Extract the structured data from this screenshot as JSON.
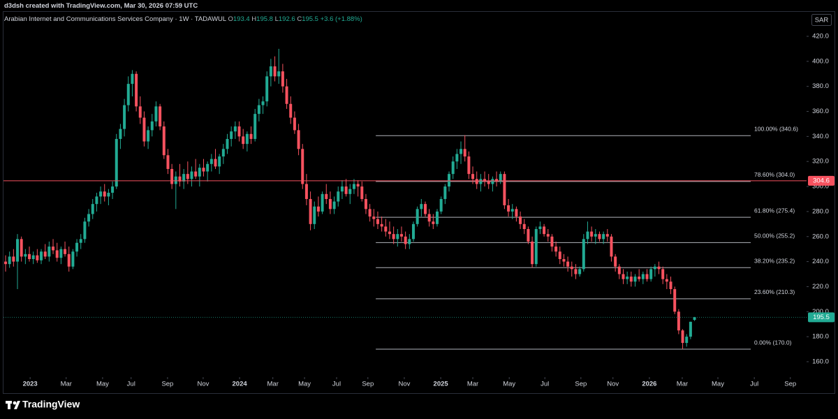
{
  "header": {
    "credit": "d3dsh created with TradingView.com, Mar 30, 2026 07:59 UTC",
    "symbol": "Arabian Internet and Communications Services Company · 1W · TADAWUL",
    "ohlc": [
      {
        "key": "O",
        "value": "193.4"
      },
      {
        "key": "H",
        "value": "195.8"
      },
      {
        "key": "L",
        "value": "192.6"
      },
      {
        "key": "C",
        "value": "195.5"
      }
    ],
    "change": "+3.6 (+1.88%)",
    "currency": "SAR",
    "brand": "TradingView"
  },
  "chart_data": {
    "type": "candlestick",
    "up_color": "#22ab94",
    "down_color": "#f7525f",
    "xlim": [
      -0.53,
      202.3
    ],
    "ylim": [
      147.7,
      426.7
    ],
    "xticks": [
      {
        "value": 6.2,
        "label": "2023"
      },
      {
        "value": 15.3,
        "label": "Mar"
      },
      {
        "value": 24.5,
        "label": "May"
      },
      {
        "value": 31.7,
        "label": "Jul"
      },
      {
        "value": 40.9,
        "label": "Sep"
      },
      {
        "value": 49.9,
        "label": "Nov"
      },
      {
        "value": 59.1,
        "label": "2024"
      },
      {
        "value": 67.5,
        "label": "Mar"
      },
      {
        "value": 75.5,
        "label": "May"
      },
      {
        "value": 83.6,
        "label": "Jul"
      },
      {
        "value": 91.5,
        "label": "Sep"
      },
      {
        "value": 100.7,
        "label": "Nov"
      },
      {
        "value": 109.9,
        "label": "2025"
      },
      {
        "value": 118.0,
        "label": "Mar"
      },
      {
        "value": 127.2,
        "label": "May"
      },
      {
        "value": 136.2,
        "label": "Jul"
      },
      {
        "value": 145.3,
        "label": "Sep"
      },
      {
        "value": 153.4,
        "label": "Nov"
      },
      {
        "value": 162.6,
        "label": "2026"
      },
      {
        "value": 170.9,
        "label": "Mar"
      },
      {
        "value": 179.9,
        "label": "May"
      },
      {
        "value": 189.1,
        "label": "Jul"
      },
      {
        "value": 198.2,
        "label": "Sep"
      }
    ],
    "yticks": [
      {
        "value": 160,
        "label": "160.0"
      },
      {
        "value": 180,
        "label": "180.0"
      },
      {
        "value": 200,
        "label": "200.0"
      },
      {
        "value": 220,
        "label": "220.0"
      },
      {
        "value": 240,
        "label": "240.0"
      },
      {
        "value": 260,
        "label": "260.0"
      },
      {
        "value": 280,
        "label": "280.0"
      },
      {
        "value": 300,
        "label": "300.0"
      },
      {
        "value": 320,
        "label": "320.0"
      },
      {
        "value": 340,
        "label": "340.0"
      },
      {
        "value": 360,
        "label": "360.0"
      },
      {
        "value": 380,
        "label": "380.0"
      },
      {
        "value": 400,
        "label": "400.0"
      },
      {
        "value": 420,
        "label": "420.0"
      }
    ],
    "fib": {
      "x": [
        93.5,
        188.2
      ],
      "color": "#d1d4dc",
      "levels": [
        {
          "value": 340.6,
          "label": "100.00% (340.6)"
        },
        {
          "value": 304.0,
          "label": "78.60% (304.0)"
        },
        {
          "value": 275.4,
          "label": "61.80% (275.4)"
        },
        {
          "value": 255.2,
          "label": "50.00% (255.2)"
        },
        {
          "value": 235.2,
          "label": "38.20% (235.2)"
        },
        {
          "value": 210.3,
          "label": "23.60% (210.3)"
        },
        {
          "value": 170.0,
          "label": "0.00% (170.0)"
        }
      ]
    },
    "price_lines": [
      {
        "value": 304.6,
        "color": "#f7525f",
        "style": "solid"
      },
      {
        "value": 195.5,
        "color": "#22ab94",
        "style": "dotted"
      }
    ],
    "candles": [
      [
        240,
        245,
        232,
        238
      ],
      [
        238,
        248,
        235,
        244
      ],
      [
        244,
        250,
        236,
        240
      ],
      [
        240,
        262,
        218,
        258
      ],
      [
        258,
        260,
        240,
        244
      ],
      [
        244,
        250,
        238,
        246
      ],
      [
        246,
        252,
        240,
        242
      ],
      [
        242,
        248,
        238,
        245
      ],
      [
        245,
        250,
        239,
        241
      ],
      [
        241,
        250,
        238,
        248
      ],
      [
        248,
        254,
        242,
        244
      ],
      [
        244,
        256,
        240,
        252
      ],
      [
        252,
        258,
        246,
        249
      ],
      [
        249,
        255,
        240,
        243
      ],
      [
        243,
        252,
        238,
        250
      ],
      [
        250,
        256,
        244,
        246
      ],
      [
        246,
        252,
        232,
        236
      ],
      [
        236,
        250,
        234,
        248
      ],
      [
        248,
        258,
        244,
        255
      ],
      [
        255,
        262,
        250,
        258
      ],
      [
        258,
        275,
        255,
        272
      ],
      [
        272,
        282,
        268,
        278
      ],
      [
        278,
        290,
        274,
        286
      ],
      [
        286,
        295,
        280,
        292
      ],
      [
        292,
        300,
        286,
        296
      ],
      [
        296,
        302,
        288,
        292
      ],
      [
        292,
        298,
        285,
        295
      ],
      [
        295,
        304,
        290,
        300
      ],
      [
        300,
        342,
        298,
        338
      ],
      [
        338,
        350,
        330,
        346
      ],
      [
        346,
        370,
        340,
        365
      ],
      [
        365,
        388,
        360,
        382
      ],
      [
        382,
        393,
        372,
        390
      ],
      [
        390,
        392,
        360,
        364
      ],
      [
        364,
        372,
        350,
        355
      ],
      [
        355,
        360,
        332,
        336
      ],
      [
        336,
        348,
        330,
        345
      ],
      [
        345,
        358,
        340,
        352
      ],
      [
        352,
        368,
        348,
        364
      ],
      [
        364,
        366,
        345,
        348
      ],
      [
        348,
        352,
        322,
        325
      ],
      [
        325,
        330,
        310,
        314
      ],
      [
        314,
        318,
        298,
        302
      ],
      [
        302,
        312,
        282,
        308
      ],
      [
        308,
        318,
        300,
        304
      ],
      [
        304,
        314,
        298,
        310
      ],
      [
        310,
        320,
        302,
        306
      ],
      [
        306,
        316,
        300,
        312
      ],
      [
        312,
        322,
        306,
        308
      ],
      [
        308,
        318,
        300,
        315
      ],
      [
        315,
        322,
        308,
        312
      ],
      [
        312,
        320,
        304,
        318
      ],
      [
        318,
        326,
        312,
        322
      ],
      [
        322,
        330,
        314,
        316
      ],
      [
        316,
        326,
        310,
        324
      ],
      [
        324,
        334,
        318,
        330
      ],
      [
        330,
        342,
        326,
        338
      ],
      [
        338,
        348,
        332,
        344
      ],
      [
        344,
        352,
        338,
        348
      ],
      [
        348,
        352,
        336,
        340
      ],
      [
        340,
        346,
        330,
        334
      ],
      [
        334,
        344,
        328,
        342
      ],
      [
        342,
        348,
        334,
        338
      ],
      [
        338,
        362,
        336,
        358
      ],
      [
        358,
        370,
        352,
        365
      ],
      [
        365,
        372,
        358,
        368
      ],
      [
        368,
        392,
        364,
        388
      ],
      [
        388,
        402,
        380,
        396
      ],
      [
        396,
        404,
        384,
        388
      ],
      [
        388,
        410,
        382,
        392
      ],
      [
        392,
        398,
        375,
        380
      ],
      [
        380,
        386,
        362,
        366
      ],
      [
        366,
        372,
        350,
        355
      ],
      [
        355,
        360,
        342,
        345
      ],
      [
        345,
        350,
        325,
        330
      ],
      [
        330,
        334,
        298,
        302
      ],
      [
        302,
        310,
        285,
        290
      ],
      [
        290,
        296,
        265,
        270
      ],
      [
        270,
        288,
        266,
        284
      ],
      [
        284,
        292,
        276,
        280
      ],
      [
        280,
        296,
        278,
        294
      ],
      [
        294,
        302,
        286,
        290
      ],
      [
        290,
        296,
        278,
        282
      ],
      [
        282,
        292,
        278,
        288
      ],
      [
        288,
        300,
        284,
        296
      ],
      [
        296,
        305,
        290,
        300
      ],
      [
        300,
        306,
        292,
        294
      ],
      [
        294,
        302,
        286,
        298
      ],
      [
        298,
        306,
        294,
        302
      ],
      [
        302,
        305,
        292,
        300
      ],
      [
        300,
        304,
        288,
        290
      ],
      [
        290,
        294,
        278,
        282
      ],
      [
        282,
        286,
        272,
        276
      ],
      [
        276,
        282,
        268,
        274
      ],
      [
        274,
        280,
        266,
        270
      ],
      [
        270,
        276,
        264,
        268
      ],
      [
        268,
        274,
        260,
        264
      ],
      [
        264,
        272,
        258,
        262
      ],
      [
        262,
        268,
        254,
        258
      ],
      [
        258,
        266,
        252,
        262
      ],
      [
        262,
        268,
        256,
        260
      ],
      [
        260,
        264,
        250,
        254
      ],
      [
        254,
        262,
        250,
        258
      ],
      [
        258,
        272,
        256,
        270
      ],
      [
        270,
        284,
        268,
        282
      ],
      [
        282,
        290,
        276,
        286
      ],
      [
        286,
        288,
        276,
        278
      ],
      [
        278,
        282,
        268,
        272
      ],
      [
        272,
        278,
        266,
        270
      ],
      [
        270,
        282,
        268,
        280
      ],
      [
        280,
        292,
        278,
        290
      ],
      [
        290,
        302,
        286,
        300
      ],
      [
        300,
        312,
        296,
        310
      ],
      [
        310,
        324,
        306,
        320
      ],
      [
        320,
        330,
        314,
        326
      ],
      [
        326,
        336,
        318,
        330
      ],
      [
        330,
        341,
        320,
        324
      ],
      [
        324,
        328,
        306,
        310
      ],
      [
        310,
        316,
        302,
        306
      ],
      [
        306,
        312,
        298,
        302
      ],
      [
        302,
        310,
        296,
        306
      ],
      [
        306,
        312,
        300,
        304
      ],
      [
        304,
        310,
        298,
        302
      ],
      [
        302,
        308,
        296,
        306
      ],
      [
        306,
        312,
        300,
        304
      ],
      [
        304,
        312,
        302,
        310
      ],
      [
        310,
        312,
        282,
        285
      ],
      [
        285,
        290,
        276,
        280
      ],
      [
        280,
        286,
        274,
        282
      ],
      [
        282,
        284,
        272,
        276
      ],
      [
        276,
        280,
        266,
        270
      ],
      [
        270,
        274,
        262,
        266
      ],
      [
        266,
        268,
        254,
        256
      ],
      [
        256,
        260,
        235,
        238
      ],
      [
        238,
        268,
        236,
        266
      ],
      [
        266,
        272,
        262,
        268
      ],
      [
        268,
        270,
        260,
        262
      ],
      [
        262,
        266,
        256,
        260
      ],
      [
        260,
        262,
        248,
        252
      ],
      [
        252,
        256,
        244,
        248
      ],
      [
        248,
        252,
        238,
        242
      ],
      [
        242,
        246,
        236,
        240
      ],
      [
        240,
        244,
        232,
        236
      ],
      [
        236,
        240,
        228,
        234
      ],
      [
        234,
        238,
        226,
        230
      ],
      [
        230,
        236,
        228,
        234
      ],
      [
        234,
        262,
        232,
        258
      ],
      [
        258,
        272,
        254,
        264
      ],
      [
        264,
        268,
        256,
        260
      ],
      [
        260,
        266,
        254,
        262
      ],
      [
        262,
        264,
        256,
        258
      ],
      [
        258,
        264,
        254,
        262
      ],
      [
        262,
        266,
        256,
        260
      ],
      [
        260,
        262,
        240,
        244
      ],
      [
        244,
        246,
        232,
        236
      ],
      [
        236,
        238,
        226,
        230
      ],
      [
        230,
        234,
        222,
        226
      ],
      [
        226,
        232,
        222,
        228
      ],
      [
        228,
        232,
        220,
        224
      ],
      [
        224,
        230,
        220,
        228
      ],
      [
        228,
        234,
        224,
        226
      ],
      [
        226,
        232,
        222,
        230
      ],
      [
        230,
        234,
        224,
        226
      ],
      [
        226,
        236,
        224,
        234
      ],
      [
        234,
        238,
        228,
        236
      ],
      [
        236,
        240,
        230,
        234
      ],
      [
        234,
        236,
        222,
        226
      ],
      [
        226,
        230,
        218,
        224
      ],
      [
        224,
        228,
        214,
        218
      ],
      [
        218,
        220,
        198,
        200
      ],
      [
        200,
        202,
        182,
        185
      ],
      [
        185,
        186,
        170,
        175
      ],
      [
        175,
        182,
        172,
        180
      ],
      [
        180,
        192,
        178,
        191.9
      ],
      [
        193.4,
        195.8,
        192.6,
        195.5
      ]
    ]
  }
}
